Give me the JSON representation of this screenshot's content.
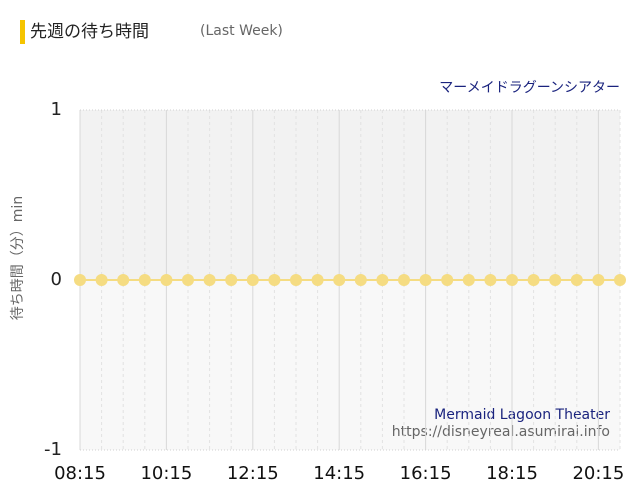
{
  "chart_data": {
    "type": "line",
    "title": "先週の待ち時間",
    "subtitle": "(Last Week)",
    "annotations": [
      "マーメイドラグーンシアター",
      "Mermaid Lagoon Theater",
      "https://disneyreal.asumirai.info"
    ],
    "y_label": "待ち時間（分）min",
    "categories": [
      "08:15",
      null,
      null,
      null,
      "10:15",
      null,
      null,
      null,
      "12:15",
      null,
      null,
      null,
      "14:15",
      null,
      null,
      null,
      "16:15",
      null,
      null,
      null,
      "18:15",
      null,
      null,
      null,
      "20:15",
      null
    ],
    "values": [
      0,
      0,
      0,
      0,
      0,
      0,
      0,
      0,
      0,
      0,
      0,
      0,
      0,
      0,
      0,
      0,
      0,
      0,
      0,
      0,
      0,
      0,
      0,
      0,
      0,
      0
    ],
    "color": "#f5dc82",
    "ylim": [
      -1,
      1
    ],
    "yticks": [
      -1,
      0,
      1
    ],
    "grid": true
  }
}
